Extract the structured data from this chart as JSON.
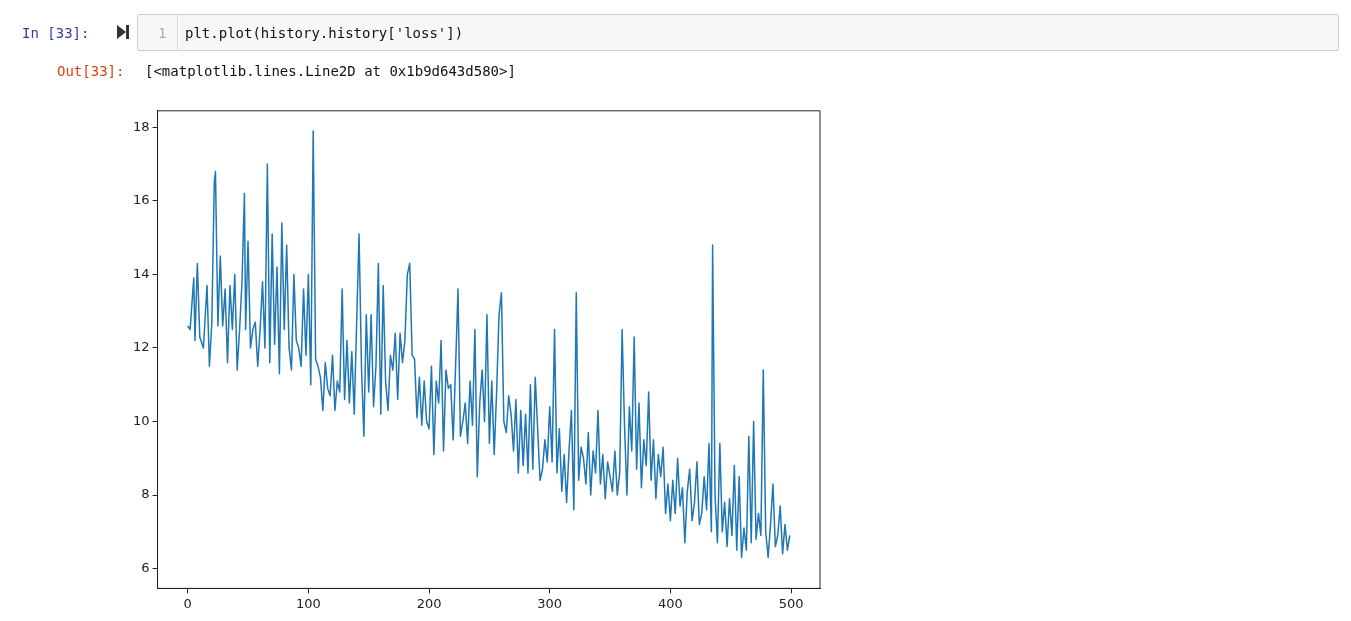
{
  "chart_data": {
    "type": "line",
    "annotations": [
      "In [33]:",
      "1",
      "plt.plot(history.history['loss'])",
      "Out[33]:",
      "[<matplotlib.lines.Line2D at 0x1b9d643d580>]"
    ],
    "xlim": [
      -25,
      524
    ],
    "ylim": [
      5.46,
      18.45
    ],
    "xticks": [
      0,
      100,
      200,
      300,
      400,
      500
    ],
    "yticks": [
      6,
      8,
      10,
      12,
      14,
      16,
      18
    ],
    "grid": false,
    "legend": false,
    "marker": "none",
    "line_style": "solid",
    "series": [
      {
        "color": "#1f77b4",
        "x": [
          0,
          2,
          5,
          6,
          8,
          10,
          13,
          16,
          18,
          20,
          22,
          23,
          25,
          27,
          29,
          31,
          33,
          35,
          37,
          39,
          41,
          43,
          45,
          47,
          48,
          50,
          52,
          54,
          56,
          58,
          60,
          62,
          64,
          66,
          68,
          70,
          72,
          74,
          76,
          78,
          80,
          82,
          84,
          86,
          88,
          90,
          92,
          94,
          96,
          98,
          100,
          102,
          104,
          106,
          108,
          110,
          112,
          114,
          116,
          118,
          120,
          122,
          124,
          126,
          128,
          130,
          132,
          134,
          136,
          138,
          140,
          142,
          144,
          146,
          148,
          150,
          152,
          154,
          156,
          158,
          160,
          162,
          164,
          166,
          168,
          170,
          172,
          174,
          176,
          178,
          180,
          182,
          184,
          186,
          188,
          190,
          192,
          194,
          196,
          198,
          200,
          202,
          204,
          206,
          208,
          210,
          212,
          214,
          216,
          218,
          220,
          222,
          224,
          226,
          228,
          230,
          232,
          234,
          236,
          238,
          240,
          242,
          244,
          246,
          248,
          250,
          252,
          254,
          256,
          258,
          260,
          262,
          264,
          266,
          268,
          270,
          272,
          274,
          276,
          278,
          280,
          282,
          284,
          286,
          288,
          290,
          292,
          294,
          296,
          298,
          300,
          302,
          304,
          306,
          308,
          310,
          312,
          314,
          316,
          318,
          320,
          322,
          324,
          326,
          328,
          330,
          332,
          334,
          336,
          338,
          340,
          342,
          344,
          346,
          348,
          350,
          352,
          354,
          356,
          358,
          360,
          362,
          364,
          366,
          368,
          370,
          372,
          374,
          376,
          378,
          380,
          382,
          384,
          386,
          388,
          390,
          392,
          394,
          396,
          398,
          400,
          402,
          404,
          406,
          408,
          410,
          412,
          414,
          416,
          418,
          420,
          422,
          424,
          426,
          428,
          430,
          432,
          434,
          435,
          437,
          439,
          441,
          443,
          445,
          447,
          449,
          451,
          453,
          455,
          457,
          459,
          461,
          463,
          465,
          467,
          469,
          471,
          473,
          475,
          477,
          479,
          481,
          483,
          485,
          487,
          489,
          491,
          493,
          495,
          497,
          499
        ],
        "values": [
          12.6,
          12.5,
          13.9,
          12.2,
          14.3,
          12.3,
          12.0,
          13.7,
          11.5,
          12.7,
          16.5,
          16.8,
          12.6,
          14.5,
          12.6,
          13.6,
          11.6,
          13.7,
          12.5,
          14.0,
          11.4,
          12.5,
          13.8,
          16.2,
          12.5,
          14.9,
          12.0,
          12.5,
          12.7,
          11.5,
          12.5,
          13.8,
          12.0,
          17.0,
          11.6,
          15.1,
          12.1,
          14.2,
          11.3,
          15.4,
          12.5,
          14.8,
          12.0,
          11.4,
          14.0,
          12.2,
          12.0,
          11.5,
          13.6,
          11.8,
          14.0,
          11.0,
          17.9,
          11.7,
          11.5,
          11.2,
          10.3,
          11.6,
          10.9,
          10.7,
          11.8,
          10.3,
          11.1,
          10.8,
          13.6,
          10.6,
          12.2,
          10.5,
          11.9,
          10.2,
          12.7,
          15.1,
          11.5,
          9.6,
          12.9,
          10.8,
          12.9,
          10.4,
          11.5,
          14.3,
          10.2,
          13.7,
          11.1,
          10.3,
          11.8,
          11.4,
          12.4,
          10.6,
          12.4,
          11.6,
          12.2,
          14.0,
          14.3,
          11.8,
          11.7,
          10.1,
          11.2,
          9.9,
          11.1,
          10.0,
          9.8,
          11.5,
          9.1,
          11.1,
          10.5,
          12.2,
          9.2,
          11.4,
          10.9,
          11.0,
          9.5,
          11.5,
          13.6,
          9.6,
          10.0,
          10.5,
          9.4,
          11.1,
          9.9,
          12.5,
          8.5,
          10.5,
          11.4,
          10.0,
          12.9,
          9.4,
          11.1,
          9.1,
          10.8,
          12.9,
          13.5,
          10.0,
          9.7,
          10.7,
          10.2,
          9.2,
          10.6,
          8.6,
          10.3,
          8.8,
          10.2,
          8.6,
          11.0,
          8.7,
          11.2,
          9.8,
          8.4,
          8.7,
          9.5,
          8.9,
          10.4,
          8.9,
          12.5,
          8.6,
          9.8,
          8.1,
          9.1,
          7.8,
          9.2,
          10.3,
          7.6,
          13.5,
          8.4,
          9.3,
          9.0,
          8.3,
          9.7,
          8.0,
          9.2,
          8.6,
          10.3,
          8.3,
          9.1,
          7.9,
          8.9,
          8.5,
          8.1,
          9.2,
          8.0,
          8.6,
          12.5,
          9.9,
          8.0,
          10.4,
          9.2,
          12.3,
          8.7,
          10.5,
          8.2,
          9.5,
          8.8,
          10.8,
          8.4,
          9.5,
          7.9,
          9.1,
          8.5,
          9.3,
          7.5,
          8.3,
          7.3,
          8.4,
          7.5,
          9.0,
          7.7,
          8.2,
          6.7,
          8.1,
          8.7,
          7.3,
          7.8,
          8.9,
          7.2,
          7.5,
          8.5,
          7.6,
          9.4,
          7.0,
          14.8,
          8.0,
          6.7,
          9.4,
          7.0,
          7.8,
          6.6,
          7.9,
          6.9,
          8.8,
          6.5,
          8.5,
          6.3,
          7.1,
          6.5,
          9.6,
          6.7,
          10.0,
          6.8,
          7.5,
          6.9,
          11.4,
          7.0,
          6.3,
          7.2,
          8.3,
          6.6,
          6.9,
          7.7,
          6.4,
          7.2,
          6.5,
          6.9
        ]
      }
    ]
  }
}
